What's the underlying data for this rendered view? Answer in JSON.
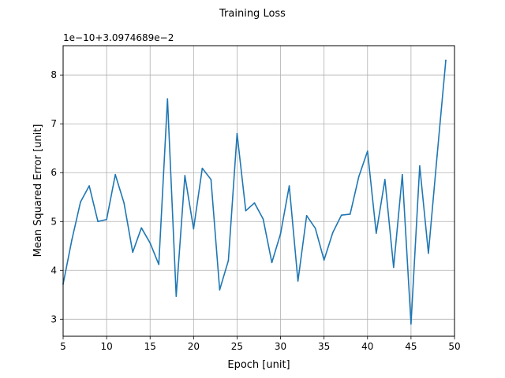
{
  "chart_data": {
    "type": "line",
    "title": "Training Loss",
    "xlabel": "Epoch [unit]",
    "ylabel": "Mean Squared Error [unit]",
    "offset_text": "1e−10+3.0974689e−2",
    "xlim": [
      5,
      50
    ],
    "ylim": [
      2.65,
      8.6
    ],
    "xticks": [
      5,
      10,
      15,
      20,
      25,
      30,
      35,
      40,
      45,
      50
    ],
    "yticks": [
      3,
      4,
      5,
      6,
      7,
      8
    ],
    "grid": true,
    "series": [
      {
        "color": "#1f77b4",
        "x": [
          5,
          6,
          7,
          8,
          9,
          10,
          11,
          12,
          13,
          14,
          15,
          16,
          17,
          18,
          19,
          20,
          21,
          22,
          23,
          24,
          25,
          26,
          27,
          28,
          29,
          30,
          31,
          32,
          33,
          34,
          35,
          36,
          37,
          38,
          39,
          40,
          41,
          42,
          43,
          44,
          45,
          46,
          47,
          48,
          49
        ],
        "y": [
          3.72,
          4.62,
          5.4,
          5.73,
          5.0,
          5.04,
          5.96,
          5.38,
          4.37,
          4.87,
          4.56,
          4.12,
          7.51,
          3.47,
          5.94,
          4.85,
          6.09,
          5.86,
          3.6,
          4.2,
          6.8,
          5.22,
          5.38,
          5.05,
          4.16,
          4.75,
          5.73,
          3.78,
          5.12,
          4.86,
          4.21,
          4.77,
          5.13,
          5.15,
          5.92,
          6.44,
          4.76,
          5.86,
          4.06,
          5.96,
          2.9,
          6.14,
          4.35,
          6.35,
          8.3
        ]
      }
    ]
  }
}
